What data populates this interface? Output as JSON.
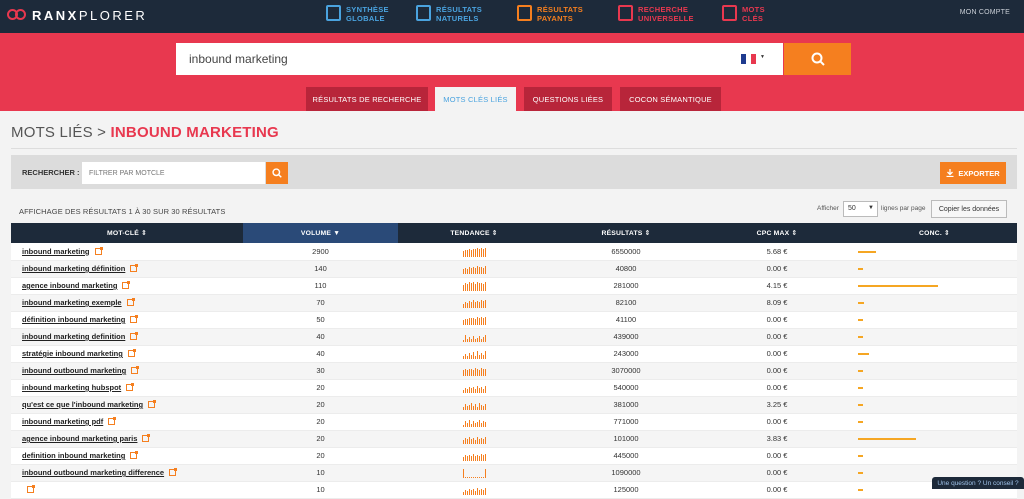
{
  "app": {
    "logo_bold": "RANX",
    "logo_light": "PLORER",
    "account": "MON COMPTE"
  },
  "nav": [
    {
      "line1": "SYNTHÈSE",
      "line2": "GLOBALE",
      "color": "#4aa3df",
      "icon": "dashboard-icon"
    },
    {
      "line1": "RÉSULTATS",
      "line2": "NATURELS",
      "color": "#4aa3df",
      "icon": "list-icon"
    },
    {
      "line1": "RÉSULTATS",
      "line2": "PAYANTS",
      "color": "#f57f1f",
      "icon": "dollar-list-icon"
    },
    {
      "line1": "RECHERCHE",
      "line2": "UNIVERSELLE",
      "color": "#e8384f",
      "icon": "checklist-icon"
    },
    {
      "line1": "MOTS",
      "line2": "CLÉS",
      "color": "#e8384f",
      "icon": "key-icon"
    }
  ],
  "search": {
    "value": "inbound marketing",
    "country_flag": "france-flag-icon"
  },
  "tabs": [
    {
      "label": "RÉSULTATS DE RECHERCHE",
      "active": false
    },
    {
      "label": "MOTS CLÉS LIÉS",
      "active": true
    },
    {
      "label": "QUESTIONS LIÉES",
      "active": false
    },
    {
      "label": "COCON SÉMANTIQUE",
      "active": false
    }
  ],
  "page": {
    "title_prefix": "MOTS LIÉS >",
    "title_keyword": "INBOUND MARKETING"
  },
  "filter": {
    "label": "RECHERCHER :",
    "placeholder": "FILTRER PAR MOTCLE",
    "export_label": "EXPORTER"
  },
  "table_info": {
    "summary": "AFFICHAGE DES RÉSULTATS 1 À 30 SUR 30 RÉSULTATS",
    "show_label": "Afficher",
    "page_size": "50",
    "per_page_label": "lignes par page",
    "copy_label": "Copier les données"
  },
  "columns": [
    "MOT-CLÉ",
    "VOLUME",
    "TENDANCE",
    "RÉSULTATS",
    "CPC MAX",
    "CONC."
  ],
  "rows": [
    {
      "keyword": "inbound marketing",
      "volume": "2900",
      "results": "6550000",
      "cpc": "5.68 €",
      "conc": 0.22,
      "trend": [
        6,
        7,
        7,
        8,
        7,
        8,
        8,
        9,
        8,
        9,
        8,
        9
      ]
    },
    {
      "keyword": "inbound marketing définition",
      "volume": "140",
      "results": "40800",
      "cpc": "0.00 €",
      "conc": 0.06,
      "trend": [
        5,
        6,
        5,
        7,
        6,
        7,
        6,
        8,
        7,
        7,
        6,
        8
      ]
    },
    {
      "keyword": "agence inbound marketing",
      "volume": "110",
      "results": "281000",
      "cpc": "4.15 €",
      "conc": 1.0,
      "trend": [
        6,
        8,
        7,
        9,
        8,
        9,
        7,
        9,
        8,
        8,
        7,
        9
      ]
    },
    {
      "keyword": "inbound marketing exemple",
      "volume": "70",
      "results": "82100",
      "cpc": "8.09 €",
      "conc": 0.07,
      "trend": [
        4,
        6,
        5,
        7,
        6,
        8,
        6,
        7,
        6,
        8,
        7,
        8
      ]
    },
    {
      "keyword": "définition inbound marketing",
      "volume": "50",
      "results": "41100",
      "cpc": "0.00 €",
      "conc": 0.06,
      "trend": [
        5,
        6,
        6,
        7,
        7,
        7,
        6,
        8,
        7,
        8,
        7,
        8
      ]
    },
    {
      "keyword": "inbound marketing definition",
      "volume": "40",
      "results": "439000",
      "cpc": "0.00 €",
      "conc": 0.06,
      "trend": [
        2,
        7,
        3,
        5,
        3,
        6,
        3,
        4,
        6,
        3,
        5,
        7
      ]
    },
    {
      "keyword": "stratégie inbound marketing",
      "volume": "40",
      "results": "243000",
      "cpc": "0.00 €",
      "conc": 0.14,
      "trend": [
        3,
        5,
        3,
        6,
        4,
        7,
        3,
        8,
        4,
        6,
        4,
        8
      ]
    },
    {
      "keyword": "inbound outbound marketing",
      "volume": "30",
      "results": "3070000",
      "cpc": "0.00 €",
      "conc": 0.06,
      "trend": [
        6,
        7,
        6,
        7,
        7,
        6,
        8,
        7,
        6,
        8,
        7,
        7
      ]
    },
    {
      "keyword": "inbound marketing hubspot",
      "volume": "20",
      "results": "540000",
      "cpc": "0.00 €",
      "conc": 0.06,
      "trend": [
        3,
        5,
        4,
        6,
        5,
        6,
        4,
        7,
        5,
        6,
        4,
        7
      ]
    },
    {
      "keyword": "qu'est ce que l'inbound marketing",
      "volume": "20",
      "results": "381000",
      "cpc": "3.25 €",
      "conc": 0.06,
      "trend": [
        3,
        6,
        4,
        5,
        7,
        4,
        6,
        3,
        7,
        5,
        4,
        6
      ]
    },
    {
      "keyword": "inbound marketing pdf",
      "volume": "20",
      "results": "771000",
      "cpc": "0.00 €",
      "conc": 0.06,
      "trend": [
        2,
        6,
        4,
        7,
        3,
        6,
        4,
        5,
        7,
        4,
        6,
        5
      ]
    },
    {
      "keyword": "agence inbound marketing paris",
      "volume": "20",
      "results": "101000",
      "cpc": "3.83 €",
      "conc": 0.72,
      "trend": [
        4,
        6,
        5,
        7,
        5,
        6,
        4,
        7,
        5,
        6,
        5,
        7
      ]
    },
    {
      "keyword": "definition inbound marketing",
      "volume": "20",
      "results": "445000",
      "cpc": "0.00 €",
      "conc": 0.06,
      "trend": [
        4,
        6,
        5,
        6,
        5,
        7,
        5,
        6,
        5,
        7,
        6,
        7
      ]
    },
    {
      "keyword": "inbound outbound marketing difference",
      "volume": "10",
      "results": "1090000",
      "cpc": "0.00 €",
      "conc": 0.06,
      "trend": [
        9,
        1,
        1,
        1,
        1,
        1,
        1,
        1,
        1,
        1,
        1,
        9
      ]
    },
    {
      "keyword": "",
      "volume": "10",
      "results": "125000",
      "cpc": "0.00 €",
      "conc": 0.06,
      "trend": [
        3,
        5,
        4,
        6,
        5,
        6,
        4,
        7,
        5,
        6,
        5,
        7
      ]
    }
  ],
  "advice": "Une question ? Un conseil ?",
  "colors": {
    "accent": "#e8384f",
    "orange": "#f57f1f",
    "navy": "#1d2a3a",
    "blue": "#4aa3df"
  }
}
